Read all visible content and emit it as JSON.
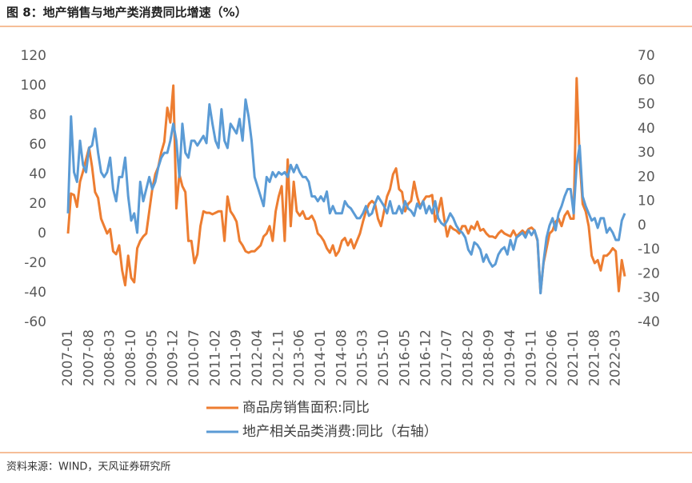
{
  "chart_data": {
    "type": "line",
    "title": "图 8：地产销售与地产类消费同比增速（%）",
    "source": "资料来源：WIND，天风证券研究所",
    "categories": [
      "2007-01",
      null,
      null,
      null,
      null,
      null,
      null,
      "2007-08",
      null,
      null,
      null,
      null,
      null,
      null,
      "2008-03",
      null,
      null,
      null,
      null,
      null,
      null,
      "2008-10",
      null,
      null,
      null,
      null,
      null,
      null,
      "2009-05",
      null,
      null,
      null,
      null,
      null,
      null,
      "2009-12",
      null,
      null,
      null,
      null,
      null,
      null,
      "2010-07",
      null,
      null,
      null,
      null,
      null,
      null,
      "2011-02",
      null,
      null,
      null,
      null,
      null,
      null,
      "2011-09",
      null,
      null,
      null,
      null,
      null,
      null,
      "2012-04",
      null,
      null,
      null,
      null,
      null,
      null,
      "2012-11",
      null,
      null,
      null,
      null,
      null,
      null,
      "2013-06",
      null,
      null,
      null,
      null,
      null,
      null,
      "2014-01",
      null,
      null,
      null,
      null,
      null,
      null,
      "2014-08",
      null,
      null,
      null,
      null,
      null,
      null,
      "2015-03",
      null,
      null,
      null,
      null,
      null,
      null,
      "2015-10",
      null,
      null,
      null,
      null,
      null,
      null,
      "2016-05",
      null,
      null,
      null,
      null,
      null,
      null,
      "2016-12",
      null,
      null,
      null,
      null,
      null,
      null,
      "2017-07",
      null,
      null,
      null,
      null,
      null,
      null,
      "2018-02",
      null,
      null,
      null,
      null,
      null,
      null,
      "2018-09",
      null,
      null,
      null,
      null,
      null,
      null,
      "2019-04",
      null,
      null,
      null,
      null,
      null,
      null,
      "2019-11",
      null,
      null,
      null,
      null,
      null,
      null,
      "2020-06",
      null,
      null,
      null,
      null,
      null,
      null,
      "2021-01",
      null,
      null,
      null,
      null,
      null,
      null,
      "2021-08",
      null,
      null,
      null,
      null,
      null,
      null,
      "2022-03",
      null,
      null,
      null
    ],
    "series": [
      {
        "name": "商品房销售面积:同比",
        "color": "#ED7D31",
        "axis": "y",
        "values": [
          0,
          27,
          26,
          18,
          35,
          42,
          50,
          58,
          45,
          28,
          24,
          10,
          5,
          0,
          3,
          -12,
          -14,
          -8,
          -25,
          -35,
          -15,
          -30,
          -33,
          -10,
          -5,
          -2,
          0,
          15,
          30,
          40,
          45,
          55,
          62,
          85,
          75,
          100,
          17,
          40,
          32,
          28,
          -5,
          -5,
          -20,
          -14,
          5,
          15,
          14,
          14,
          13,
          14,
          15,
          15,
          -5,
          25,
          15,
          12,
          8,
          -5,
          -8,
          -12,
          -13,
          -12,
          -12,
          -10,
          -8,
          -2,
          0,
          5,
          -5,
          15,
          25,
          32,
          -5,
          50,
          5,
          35,
          15,
          12,
          15,
          10,
          10,
          12,
          8,
          0,
          -2,
          -5,
          -10,
          -13,
          -8,
          -15,
          -12,
          -5,
          -3,
          -8,
          -4,
          -10,
          -5,
          0,
          8,
          15,
          20,
          22,
          20,
          10,
          5,
          15,
          25,
          30,
          40,
          44,
          30,
          28,
          15,
          20,
          22,
          35,
          25,
          18,
          22,
          25,
          25,
          26,
          8,
          15,
          24,
          10,
          -2,
          5,
          3,
          2,
          0,
          5,
          5,
          0,
          5,
          3,
          8,
          2,
          3,
          0,
          -2,
          -2,
          -3,
          0,
          2,
          0,
          -1,
          -2,
          2,
          -2,
          0,
          2,
          0,
          3,
          4,
          2,
          -5,
          -40,
          -20,
          -10,
          0,
          2,
          8,
          10,
          5,
          12,
          15,
          10,
          10,
          105,
          50,
          20,
          15,
          5,
          -15,
          -20,
          -18,
          -25,
          -15,
          -15,
          -13,
          -10,
          -12,
          -39,
          -18,
          -29
        ]
      },
      {
        "name": "地产相关品类消费:同比（右轴）",
        "color": "#5B9BD5",
        "axis": "y2",
        "values": [
          5,
          45,
          22,
          18,
          35,
          25,
          22,
          32,
          33,
          40,
          30,
          22,
          20,
          22,
          28,
          15,
          10,
          20,
          20,
          28,
          12,
          2,
          5,
          -3,
          18,
          10,
          15,
          20,
          15,
          18,
          24,
          28,
          30,
          30,
          35,
          42,
          35,
          20,
          42,
          30,
          28,
          35,
          35,
          33,
          35,
          37,
          34,
          50,
          42,
          35,
          32,
          48,
          35,
          32,
          42,
          40,
          38,
          44,
          35,
          52,
          45,
          35,
          20,
          16,
          12,
          8,
          20,
          18,
          22,
          20,
          22,
          21,
          22,
          20,
          25,
          22,
          25,
          22,
          20,
          20,
          18,
          12,
          12,
          10,
          12,
          10,
          14,
          5,
          8,
          5,
          5,
          5,
          10,
          8,
          7,
          5,
          3,
          3,
          5,
          8,
          4,
          5,
          9,
          12,
          10,
          8,
          5,
          10,
          5,
          5,
          8,
          5,
          10,
          7,
          6,
          4,
          9,
          7,
          10,
          5,
          8,
          5,
          10,
          3,
          1,
          0,
          2,
          5,
          3,
          0,
          -2,
          -3,
          -5,
          -10,
          -12,
          -7,
          -8,
          -10,
          -15,
          -12,
          -15,
          -17,
          -16,
          -12,
          -10,
          -9,
          -12,
          -6,
          -10,
          -5,
          -4,
          -3,
          -5,
          -2,
          -4,
          -2,
          -6,
          -28,
          -15,
          -5,
          0,
          3,
          -2,
          5,
          8,
          12,
          15,
          15,
          5,
          25,
          33,
          12,
          8,
          5,
          2,
          3,
          -1,
          3,
          3,
          -3,
          -1,
          -3,
          -6,
          -6,
          2,
          5
        ]
      }
    ],
    "ylim": [
      -60,
      120
    ],
    "yticks": [
      -60,
      -40,
      -20,
      0,
      20,
      40,
      60,
      80,
      100,
      120
    ],
    "y2lim": [
      -40,
      70
    ],
    "y2ticks": [
      -40,
      -30,
      -20,
      -10,
      0,
      10,
      20,
      30,
      40,
      50,
      60,
      70
    ],
    "grid": false,
    "legend": "bottom"
  }
}
